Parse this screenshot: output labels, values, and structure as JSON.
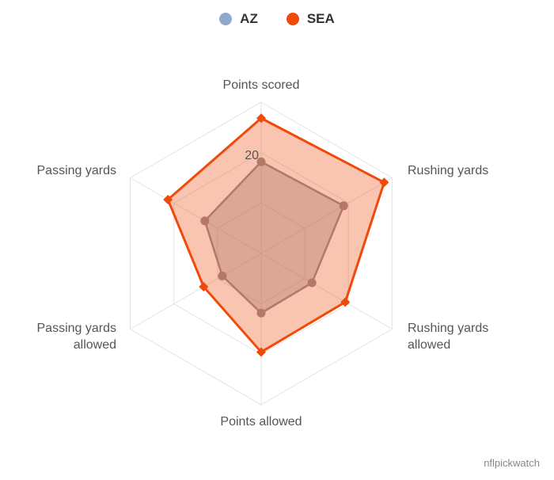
{
  "chart_data": {
    "type": "radar",
    "title": "",
    "categories": [
      "Points scored",
      "Rushing yards",
      "Rushing yards allowed",
      "Points allowed",
      "Passing yards allowed",
      "Passing yards"
    ],
    "max": 33,
    "tick_label": "20",
    "tick_value": 20,
    "series": [
      {
        "name": "AZ",
        "color": "#8fa9cc",
        "values": [
          20,
          20.8,
          12.8,
          13,
          9.8,
          14.2
        ]
      },
      {
        "name": "SEA",
        "color": "#f04a0a",
        "values": [
          29.5,
          31,
          21.2,
          21.5,
          14.5,
          23.5
        ]
      }
    ],
    "legend": {
      "position": "top-center"
    }
  },
  "credit": "nflpickwatch"
}
